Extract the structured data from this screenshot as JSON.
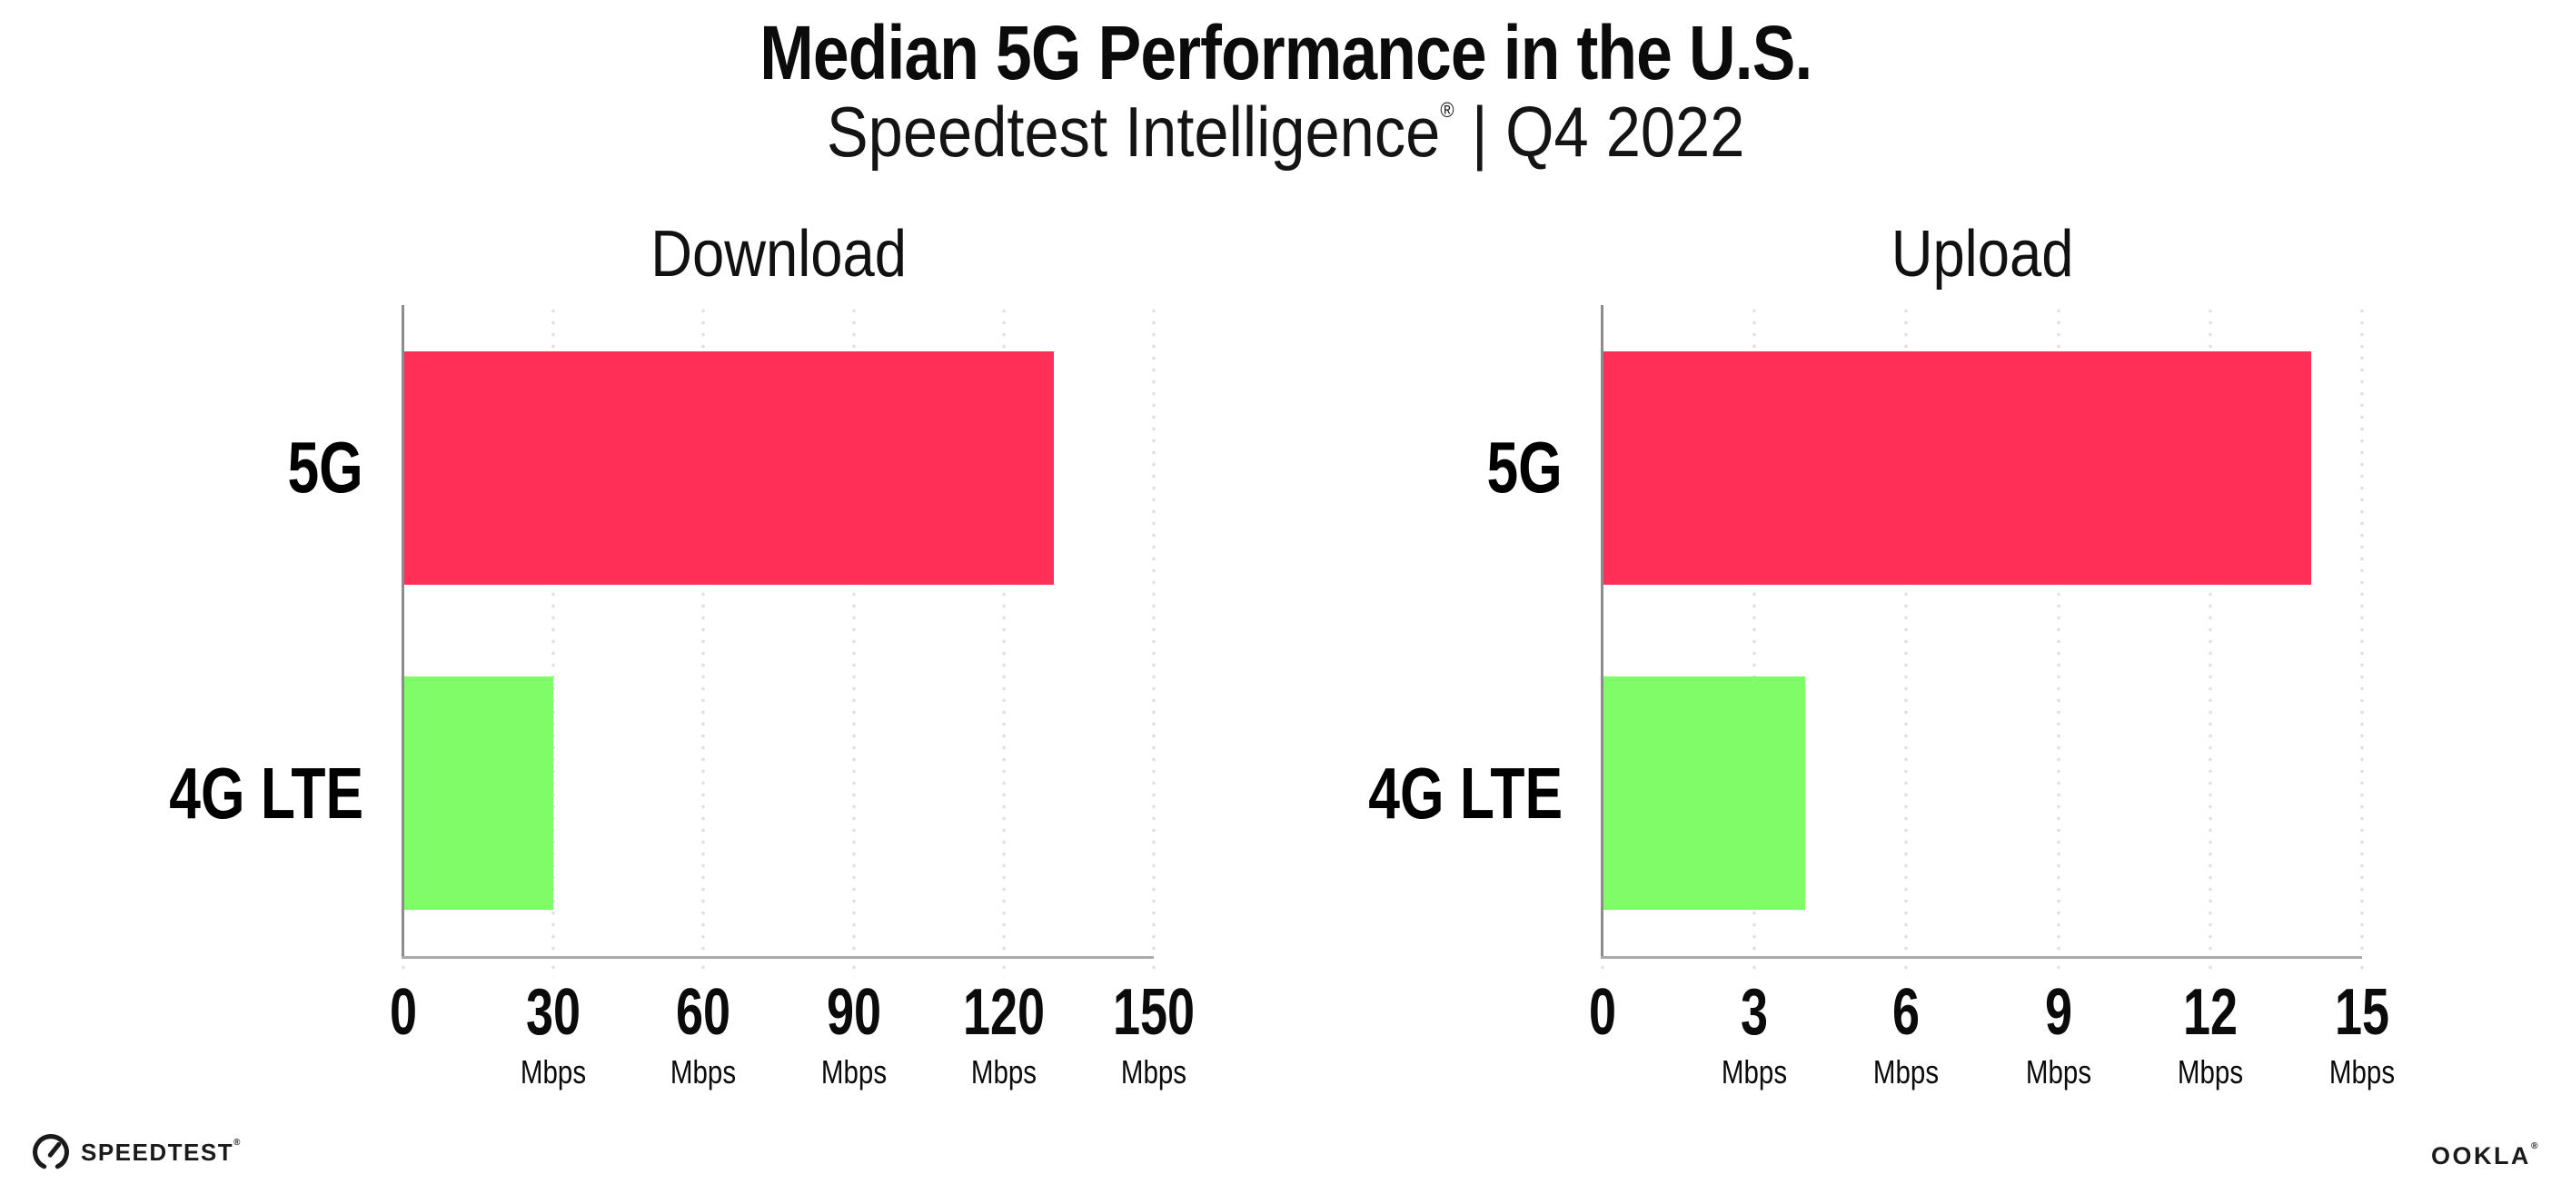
{
  "header": {
    "title": "Median 5G Performance in the U.S.",
    "subtitle_brand": "Speedtest Intelligence",
    "subtitle_reg": "®",
    "subtitle_divider": "|",
    "subtitle_period": "Q4 2022"
  },
  "colors": {
    "bar_5g_pink": "#ff2f58",
    "bar_4g_green": "#80fc68",
    "gridline": "#e0e0ea",
    "y_axis_line": "#8c8c8c",
    "x_axis_line": "#ababab",
    "text": "#0b0b0b"
  },
  "chart_data": [
    {
      "type": "bar",
      "orientation": "horizontal",
      "title": "Download",
      "categories": [
        "5G",
        "4G LTE"
      ],
      "values": [
        130,
        30
      ],
      "unit": "Mbps",
      "colors": [
        "#ff2f58",
        "#80fc68"
      ],
      "xlim": [
        0,
        150
      ],
      "xticks": [
        0,
        30,
        60,
        90,
        120,
        150
      ],
      "grid": "vertical-dotted",
      "legend": "none"
    },
    {
      "type": "bar",
      "orientation": "horizontal",
      "title": "Upload",
      "categories": [
        "5G",
        "4G LTE"
      ],
      "values": [
        14,
        4
      ],
      "unit": "Mbps",
      "colors": [
        "#ff2f58",
        "#80fc68"
      ],
      "xlim": [
        0,
        15
      ],
      "xticks": [
        0,
        3,
        6,
        9,
        12,
        15
      ],
      "grid": "vertical-dotted",
      "legend": "none"
    }
  ],
  "footer": {
    "speedtest_label": "SPEEDTEST",
    "speedtest_reg": "®",
    "ookla_label": "OOKLA",
    "ookla_reg": "®"
  }
}
